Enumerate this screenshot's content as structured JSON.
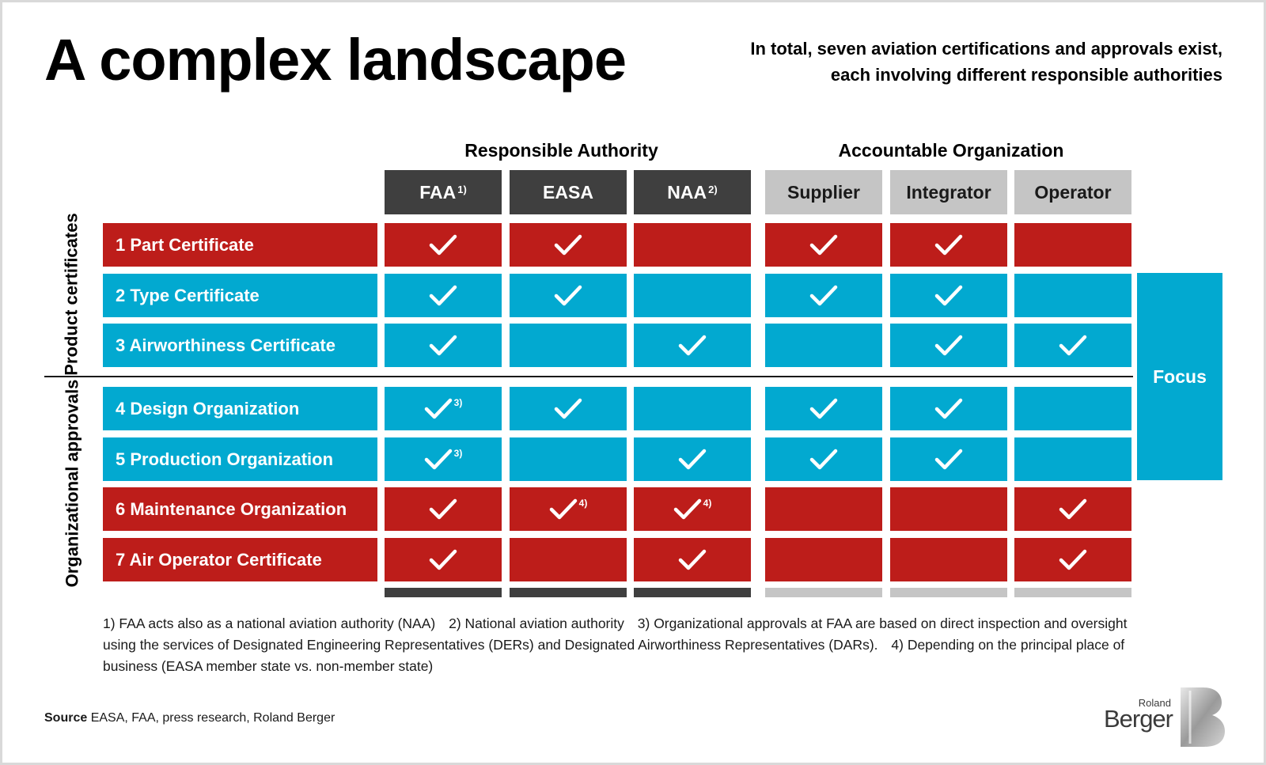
{
  "title": "A complex landscape",
  "subtitle": "In total, seven aviation certifications and approvals exist, each involving different responsible authorities",
  "groups": {
    "authority": "Responsible Authority",
    "organization": "Accountable Organization"
  },
  "columns": [
    {
      "label": "FAA",
      "sup": "1)"
    },
    {
      "label": "EASA",
      "sup": ""
    },
    {
      "label": "NAA",
      "sup": "2)"
    },
    {
      "label": "Supplier",
      "sup": ""
    },
    {
      "label": "Integrator",
      "sup": ""
    },
    {
      "label": "Operator",
      "sup": ""
    }
  ],
  "sections": {
    "product": "Product certificates",
    "org": "Organizational approvals"
  },
  "rows": [
    {
      "label": "1 Part Certificate",
      "color": "red",
      "checks": [
        true,
        true,
        false,
        true,
        true,
        false
      ],
      "notes": [
        "",
        "",
        "",
        "",
        "",
        ""
      ]
    },
    {
      "label": "2 Type Certificate",
      "color": "blue",
      "checks": [
        true,
        true,
        false,
        true,
        true,
        false
      ],
      "notes": [
        "",
        "",
        "",
        "",
        "",
        ""
      ]
    },
    {
      "label": "3 Airworthiness Certificate",
      "color": "blue",
      "checks": [
        true,
        false,
        true,
        false,
        true,
        true
      ],
      "notes": [
        "",
        "",
        "",
        "",
        "",
        ""
      ]
    },
    {
      "label": "4 Design Organization",
      "color": "blue",
      "checks": [
        true,
        true,
        false,
        true,
        true,
        false
      ],
      "notes": [
        "3)",
        "",
        "",
        "",
        "",
        ""
      ]
    },
    {
      "label": "5 Production Organization",
      "color": "blue",
      "checks": [
        true,
        false,
        true,
        true,
        true,
        false
      ],
      "notes": [
        "3)",
        "",
        "",
        "",
        "",
        ""
      ]
    },
    {
      "label": "6 Maintenance Organization",
      "color": "red",
      "checks": [
        true,
        true,
        true,
        false,
        false,
        true
      ],
      "notes": [
        "",
        "4)",
        "4)",
        "",
        "",
        ""
      ]
    },
    {
      "label": "7 Air Operator Certificate",
      "color": "red",
      "checks": [
        true,
        false,
        true,
        false,
        false,
        true
      ],
      "notes": [
        "",
        "",
        "",
        "",
        "",
        ""
      ]
    }
  ],
  "focus_label": "Focus",
  "footnotes": [
    "1) FAA acts also as a national aviation authority (NAA)",
    "2) National aviation authority",
    "3) Organizational approvals at FAA are based on direct inspection and oversight using the services of Designated Engineering Representatives (DERs) and Designated Airworthiness Representatives (DARs).",
    "4) Depending on the principal place of business (EASA member state vs. non-member state)"
  ],
  "source": {
    "label": "Source",
    "text": "EASA, FAA, press research, Roland Berger"
  },
  "logo": {
    "line1": "Roland",
    "line2": "Berger"
  },
  "colors": {
    "red": "#bd1d1a",
    "blue": "#02a9d0",
    "dark_header": "#3f3f3f",
    "light_header": "#c5c5c5"
  }
}
